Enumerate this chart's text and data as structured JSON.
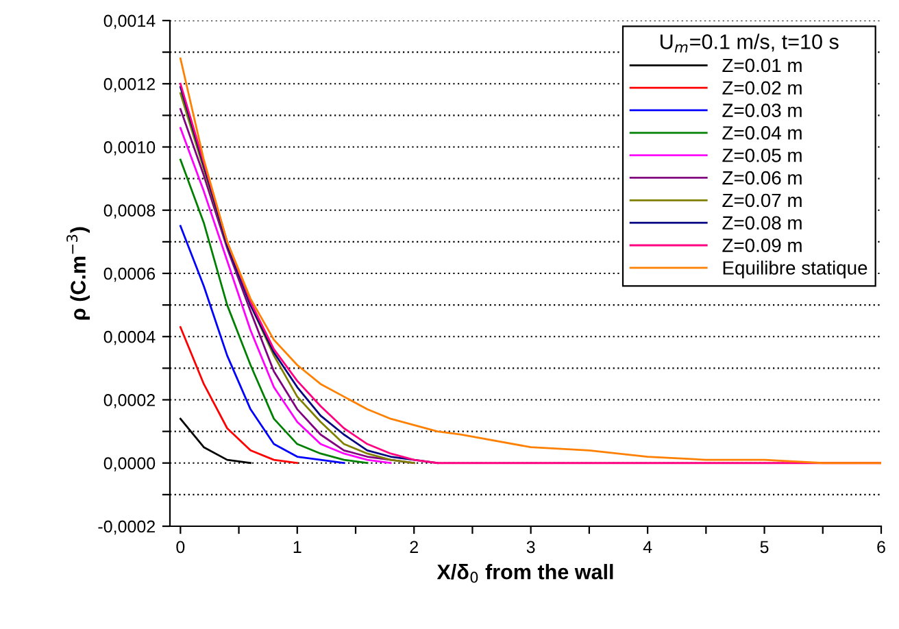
{
  "chart_data": {
    "type": "line",
    "xlabel": "X/δ$_{0}$ from the wall",
    "ylabel": "ρ (C.m$^{−3}$)",
    "legend_title": "U$_{m}$=0.1 m/s, t=10 s",
    "x": [
      0,
      0.2,
      0.4,
      0.6,
      0.8,
      1.0,
      1.2,
      1.4,
      1.6,
      1.8,
      2.0,
      2.2,
      2.4,
      3,
      3.5,
      4,
      4.5,
      5,
      5.5,
      6
    ],
    "xlim": [
      -0.09,
      6
    ],
    "xticks": [
      0,
      {
        "value": 0.5,
        "label": null
      },
      1,
      {
        "value": 1.5,
        "label": null
      },
      2,
      {
        "value": 2.5,
        "label": null
      },
      3,
      {
        "value": 3.5,
        "label": null
      },
      4,
      {
        "value": 4.5,
        "label": null
      },
      5,
      {
        "value": 5.5,
        "label": null
      },
      6
    ],
    "ylim": [
      -0.0002,
      0.0014
    ],
    "yticks": [
      {
        "value": -0.0002,
        "label": "-0,0002"
      },
      {
        "value": -0.0001,
        "label": null
      },
      {
        "value": 0.0,
        "label": "0,0000"
      },
      {
        "value": 0.0001,
        "label": null
      },
      {
        "value": 0.0002,
        "label": "0,0002"
      },
      {
        "value": 0.0003,
        "label": null
      },
      {
        "value": 0.0004,
        "label": "0,0004"
      },
      {
        "value": 0.0005,
        "label": null
      },
      {
        "value": 0.0006,
        "label": "0,0006"
      },
      {
        "value": 0.0007,
        "label": null
      },
      {
        "value": 0.0008,
        "label": "0,0008"
      },
      {
        "value": 0.0009,
        "label": null
      },
      {
        "value": 0.001,
        "label": "0,0010"
      },
      {
        "value": 0.0011,
        "label": null
      },
      {
        "value": 0.0012,
        "label": "0,0012"
      },
      {
        "value": 0.0013,
        "label": null
      },
      {
        "value": 0.0014,
        "label": "0,0014"
      }
    ],
    "grid": "y",
    "legend": "top right",
    "marker": "none",
    "line_style": "solid",
    "series": [
      {
        "name": "Z=0.01 m",
        "color": "#000000",
        "values": [
          0.00014,
          5e-05,
          1e-05,
          0,
          null,
          null,
          null,
          null,
          null,
          null,
          null,
          null,
          null,
          null,
          null,
          null,
          null,
          null,
          null,
          null
        ]
      },
      {
        "name": "Z=0.02 m",
        "color": "#ff0000",
        "values": [
          0.00043,
          0.00025,
          0.00011,
          4e-05,
          1e-05,
          0,
          null,
          null,
          null,
          null,
          null,
          null,
          null,
          null,
          null,
          null,
          null,
          null,
          null,
          null
        ]
      },
      {
        "name": "Z=0.03 m",
        "color": "#0000ff",
        "values": [
          0.00075,
          0.00056,
          0.00034,
          0.00017,
          6e-05,
          2e-05,
          1e-05,
          0,
          null,
          null,
          null,
          null,
          null,
          null,
          null,
          null,
          null,
          null,
          null,
          null
        ]
      },
      {
        "name": "Z=0.04 m",
        "color": "#008000",
        "values": [
          0.00096,
          0.00076,
          0.0005,
          0.00031,
          0.00014,
          6e-05,
          3e-05,
          1e-05,
          0,
          null,
          null,
          null,
          null,
          null,
          null,
          null,
          null,
          null,
          null,
          null
        ]
      },
      {
        "name": "Z=0.05 m",
        "color": "#ff00ff",
        "values": [
          0.00106,
          0.00086,
          0.00064,
          0.00042,
          0.00024,
          0.00013,
          6e-05,
          3e-05,
          1e-05,
          0,
          null,
          null,
          null,
          null,
          null,
          null,
          null,
          null,
          null,
          null
        ]
      },
      {
        "name": "Z=0.06 m",
        "color": "#800080",
        "values": [
          0.00112,
          0.00091,
          0.00068,
          0.00048,
          0.00029,
          0.00017,
          9e-05,
          4e-05,
          2e-05,
          1e-05,
          0,
          null,
          null,
          null,
          null,
          null,
          null,
          null,
          null,
          null
        ]
      },
      {
        "name": "Z=0.07 m",
        "color": "#808000",
        "values": [
          0.00117,
          0.00093,
          0.00069,
          0.0005,
          0.00034,
          0.00021,
          0.00013,
          6e-05,
          3e-05,
          1e-05,
          0,
          null,
          null,
          null,
          null,
          null,
          null,
          null,
          null,
          null
        ]
      },
      {
        "name": "Z=0.08 m",
        "color": "#000080",
        "values": [
          0.00119,
          0.00094,
          0.00069,
          0.0005,
          0.00035,
          0.00024,
          0.00015,
          9e-05,
          4e-05,
          2e-05,
          1e-05,
          0,
          null,
          null,
          null,
          null,
          null,
          null,
          null,
          null
        ]
      },
      {
        "name": "Z=0.09 m",
        "color": "#ff0080",
        "values": [
          0.0012,
          0.00095,
          0.0007,
          0.00051,
          0.00036,
          0.00026,
          0.00018,
          0.00011,
          6e-05,
          3e-05,
          1e-05,
          0,
          0,
          0,
          0,
          0,
          0,
          0,
          0,
          0
        ]
      },
      {
        "name": "Equilibre statique",
        "color": "#ff8000",
        "values": [
          0.00128,
          0.00096,
          0.0007,
          0.00052,
          0.00039,
          0.00031,
          0.00025,
          0.00021,
          0.00017,
          0.00014,
          0.00012,
          0.0001,
          9e-05,
          5e-05,
          4e-05,
          2e-05,
          1e-05,
          1e-05,
          0,
          0
        ]
      }
    ]
  }
}
